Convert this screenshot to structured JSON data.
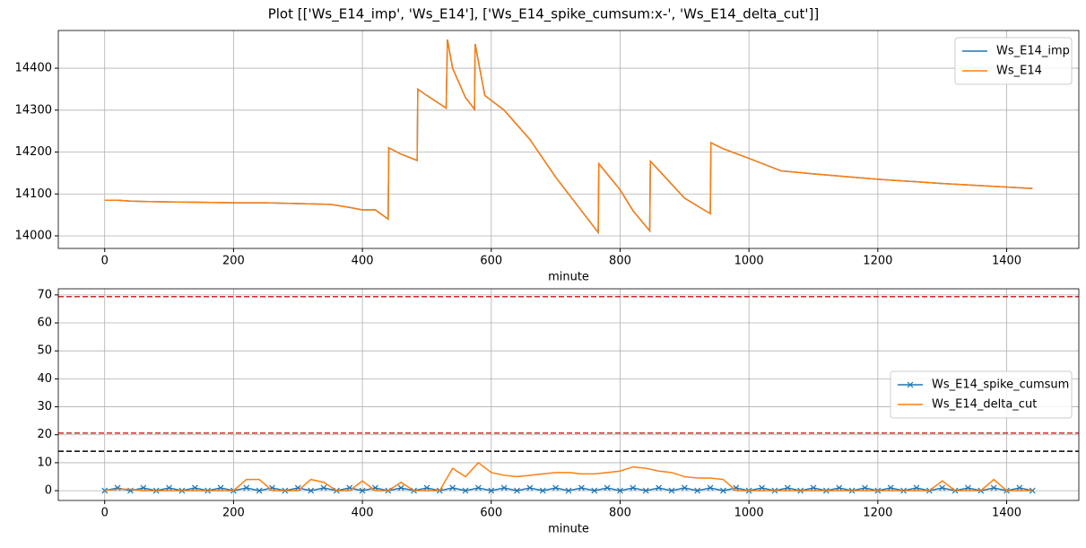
{
  "title": "Plot [['Ws_E14_imp', 'Ws_E14'], ['Ws_E14_spike_cumsum:x-', 'Ws_E14_delta_cut']]",
  "chart_data": [
    {
      "type": "line",
      "xlabel": "minute",
      "legend": "upper right",
      "grid": true,
      "xlim": [
        -72,
        1512
      ],
      "xticks": [
        0,
        200,
        400,
        600,
        800,
        1000,
        1200,
        1400
      ],
      "ylim": [
        13970,
        14490
      ],
      "yticks": [
        14000,
        14100,
        14200,
        14300,
        14400
      ],
      "x": [
        0,
        20,
        40,
        60,
        100,
        200,
        250,
        300,
        350,
        380,
        400,
        420,
        440,
        441,
        460,
        485,
        486,
        500,
        530,
        532,
        540,
        560,
        574,
        575,
        590,
        620,
        660,
        700,
        740,
        766,
        767,
        800,
        820,
        846,
        847,
        870,
        900,
        940,
        941,
        960,
        1000,
        1050,
        1100,
        1200,
        1300,
        1440
      ],
      "series": [
        {
          "name": "Ws_E14_imp",
          "color": "#1f77b4",
          "values": [
            14085,
            14085,
            14083,
            14082,
            14081,
            14079,
            14079,
            14077,
            14075,
            14068,
            14062,
            14062,
            14040,
            14210,
            14195,
            14180,
            14350,
            14335,
            14305,
            14468,
            14400,
            14330,
            14302,
            14458,
            14335,
            14300,
            14230,
            14140,
            14060,
            14008,
            14172,
            14110,
            14060,
            14012,
            14178,
            14140,
            14090,
            14053,
            14222,
            14208,
            14185,
            14155,
            14148,
            14135,
            14125,
            14113
          ]
        },
        {
          "name": "Ws_E14",
          "color": "#ff7f0e",
          "values": [
            14085,
            14085,
            14083,
            14082,
            14081,
            14079,
            14079,
            14077,
            14075,
            14068,
            14062,
            14062,
            14040,
            14210,
            14195,
            14180,
            14350,
            14335,
            14305,
            14468,
            14400,
            14330,
            14302,
            14458,
            14335,
            14300,
            14230,
            14140,
            14060,
            14008,
            14172,
            14110,
            14060,
            14012,
            14178,
            14140,
            14090,
            14053,
            14222,
            14208,
            14185,
            14155,
            14148,
            14135,
            14125,
            14113
          ]
        }
      ]
    },
    {
      "type": "line",
      "xlabel": "minute",
      "legend": "center right",
      "grid": true,
      "xlim": [
        -72,
        1512
      ],
      "xticks": [
        0,
        200,
        400,
        600,
        800,
        1000,
        1200,
        1400
      ],
      "ylim": [
        -3.5,
        72.2
      ],
      "yticks": [
        0,
        10,
        20,
        30,
        40,
        50,
        60,
        70
      ],
      "hlines": [
        {
          "value": 69.4,
          "color": "#d62728",
          "linestyle": "dashed"
        },
        {
          "value": 20.6,
          "color": "#d62728",
          "linestyle": "dashed"
        },
        {
          "value": 14.1,
          "color": "#000000",
          "linestyle": "dashed"
        }
      ],
      "x": [
        0,
        20,
        40,
        60,
        80,
        100,
        120,
        140,
        160,
        180,
        200,
        220,
        240,
        260,
        280,
        300,
        320,
        340,
        360,
        380,
        400,
        420,
        440,
        460,
        480,
        500,
        520,
        540,
        560,
        580,
        600,
        620,
        640,
        660,
        680,
        700,
        720,
        740,
        760,
        780,
        800,
        820,
        840,
        860,
        880,
        900,
        920,
        940,
        960,
        980,
        1000,
        1020,
        1040,
        1060,
        1080,
        1100,
        1120,
        1140,
        1160,
        1180,
        1200,
        1220,
        1240,
        1260,
        1280,
        1300,
        1320,
        1340,
        1360,
        1380,
        1400,
        1420,
        1440
      ],
      "series": [
        {
          "name": "Ws_E14_spike_cumsum",
          "color": "#1f77b4",
          "marker": "x",
          "values": [
            0,
            1,
            0,
            1,
            0,
            1,
            0,
            1,
            0,
            1,
            0,
            1,
            0,
            1,
            0,
            1,
            0,
            1,
            0,
            1,
            0,
            1,
            0,
            1,
            0,
            1,
            0,
            1,
            0,
            1,
            0,
            1,
            0,
            1,
            0,
            1,
            0,
            1,
            0,
            1,
            0,
            1,
            0,
            1,
            0,
            1,
            0,
            1,
            0,
            1,
            0,
            1,
            0,
            1,
            0,
            1,
            0,
            1,
            0,
            1,
            0,
            1,
            0,
            1,
            0,
            1,
            0,
            1,
            0,
            1,
            0,
            1,
            0
          ]
        },
        {
          "name": "Ws_E14_delta_cut",
          "color": "#ff7f0e",
          "values": [
            0,
            0.5,
            0.5,
            0,
            0,
            0,
            0,
            0,
            0,
            0,
            0,
            4,
            4,
            0,
            0,
            0,
            4,
            3,
            0,
            0,
            3.5,
            0,
            0,
            3,
            0,
            0,
            0,
            8,
            5,
            10,
            6.5,
            5.5,
            5,
            5.5,
            6,
            6.5,
            6.5,
            6,
            6,
            6.5,
            7,
            8.5,
            8,
            7,
            6.5,
            5,
            4.5,
            4.5,
            4,
            0,
            0,
            0,
            0,
            0,
            0,
            0,
            0,
            0,
            0,
            0,
            0,
            0,
            0,
            0,
            0,
            3.5,
            0,
            0,
            0,
            4,
            0,
            0,
            0
          ]
        }
      ]
    }
  ]
}
